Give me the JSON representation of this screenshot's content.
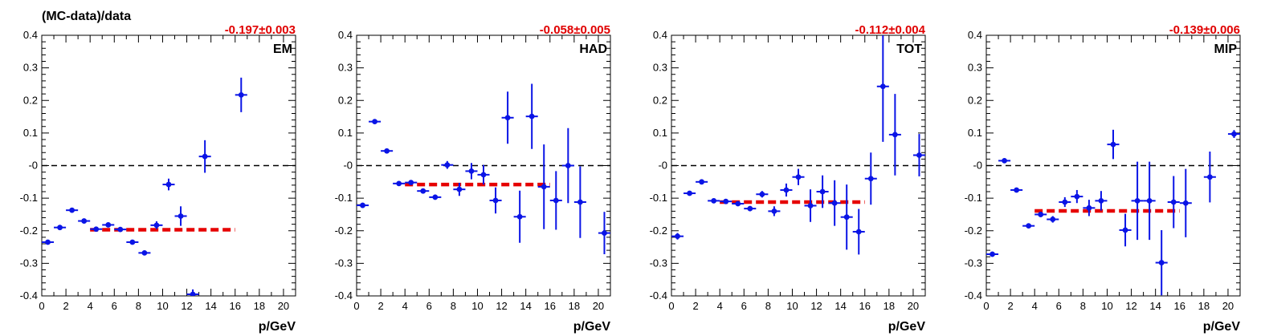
{
  "figure": {
    "ylabel": "(MC-data)/data",
    "xlabel": "p/GeV"
  },
  "colors": {
    "points": "#0a14e6",
    "fit": "#e60000",
    "fit_text": "#e00000",
    "zero_line": "#000000",
    "axes": "#000000"
  },
  "chart_data": [
    {
      "type": "scatter",
      "title": "EM",
      "fit_label": "-0.197±0.003",
      "fit_value": -0.197,
      "fit_range": [
        4,
        16
      ],
      "xlabel": "p/GeV",
      "ylabel": "(MC-data)/data",
      "xlim": [
        0,
        21
      ],
      "ylim": [
        -0.4,
        0.4
      ],
      "x_ticks": [
        "0",
        "2",
        "4",
        "6",
        "8",
        "10",
        "12",
        "14",
        "16",
        "18",
        "20"
      ],
      "y_ticks": [
        "-0.4",
        "-0.3",
        "-0.2",
        "-0.1",
        "-0",
        "0.1",
        "0.2",
        "0.3",
        "0.4"
      ],
      "points": [
        {
          "x": 0.5,
          "y": -0.235,
          "err": 0.006
        },
        {
          "x": 1.5,
          "y": -0.19,
          "err": 0.004
        },
        {
          "x": 2.5,
          "y": -0.137,
          "err": 0.004
        },
        {
          "x": 3.5,
          "y": -0.17,
          "err": 0.004
        },
        {
          "x": 4.5,
          "y": -0.195,
          "err": 0.004
        },
        {
          "x": 5.5,
          "y": -0.182,
          "err": 0.004
        },
        {
          "x": 6.5,
          "y": -0.196,
          "err": 0.004
        },
        {
          "x": 7.5,
          "y": -0.235,
          "err": 0.005
        },
        {
          "x": 8.5,
          "y": -0.268,
          "err": 0.006
        },
        {
          "x": 9.5,
          "y": -0.183,
          "err": 0.012
        },
        {
          "x": 10.5,
          "y": -0.058,
          "err": 0.018
        },
        {
          "x": 11.5,
          "y": -0.155,
          "err": 0.03
        },
        {
          "x": 12.5,
          "y": -0.395,
          "err": 0.015
        },
        {
          "x": 13.5,
          "y": 0.028,
          "err": 0.05
        },
        {
          "x": 16.5,
          "y": 0.217,
          "err": 0.053
        }
      ]
    },
    {
      "type": "scatter",
      "title": "HAD",
      "fit_label": "-0.058±0.005",
      "fit_value": -0.058,
      "fit_range": [
        4,
        16
      ],
      "xlabel": "p/GeV",
      "ylabel": "",
      "xlim": [
        0,
        21
      ],
      "ylim": [
        -0.4,
        0.4
      ],
      "x_ticks": [
        "0",
        "2",
        "4",
        "6",
        "8",
        "10",
        "12",
        "14",
        "16",
        "18",
        "20"
      ],
      "y_ticks": [
        "-0.4",
        "-0.3",
        "-0.2",
        "-0.1",
        "-0",
        "0.1",
        "0.2",
        "0.3",
        "0.4"
      ],
      "points": [
        {
          "x": 0.5,
          "y": -0.122,
          "err": 0.008
        },
        {
          "x": 1.5,
          "y": 0.135,
          "err": 0.004
        },
        {
          "x": 2.5,
          "y": 0.045,
          "err": 0.004
        },
        {
          "x": 3.5,
          "y": -0.055,
          "err": 0.004
        },
        {
          "x": 4.5,
          "y": -0.052,
          "err": 0.005
        },
        {
          "x": 5.5,
          "y": -0.078,
          "err": 0.006
        },
        {
          "x": 6.5,
          "y": -0.097,
          "err": 0.008
        },
        {
          "x": 7.5,
          "y": 0.002,
          "err": 0.012
        },
        {
          "x": 8.5,
          "y": -0.073,
          "err": 0.02
        },
        {
          "x": 9.5,
          "y": -0.017,
          "err": 0.025
        },
        {
          "x": 10.5,
          "y": -0.028,
          "err": 0.03
        },
        {
          "x": 11.5,
          "y": -0.107,
          "err": 0.04
        },
        {
          "x": 12.5,
          "y": 0.147,
          "err": 0.08
        },
        {
          "x": 13.5,
          "y": -0.157,
          "err": 0.08
        },
        {
          "x": 14.5,
          "y": 0.151,
          "err": 0.1
        },
        {
          "x": 15.5,
          "y": -0.065,
          "err": 0.13
        },
        {
          "x": 16.5,
          "y": -0.107,
          "err": 0.09
        },
        {
          "x": 17.5,
          "y": 0.0,
          "err": 0.115
        },
        {
          "x": 18.5,
          "y": -0.112,
          "err": 0.11
        },
        {
          "x": 20.5,
          "y": -0.207,
          "err": 0.065
        }
      ]
    },
    {
      "type": "scatter",
      "title": "TOT",
      "fit_label": "-0.112±0.004",
      "fit_value": -0.112,
      "fit_range": [
        4,
        16
      ],
      "xlabel": "p/GeV",
      "ylabel": "",
      "xlim": [
        0,
        21
      ],
      "ylim": [
        -0.4,
        0.4
      ],
      "x_ticks": [
        "0",
        "2",
        "4",
        "6",
        "8",
        "10",
        "12",
        "14",
        "16",
        "18",
        "20"
      ],
      "y_ticks": [
        "-0.4",
        "-0.3",
        "-0.2",
        "-0.1",
        "-0",
        "0.1",
        "0.2",
        "0.3",
        "0.4"
      ],
      "points": [
        {
          "x": 0.5,
          "y": -0.217,
          "err": 0.01
        },
        {
          "x": 1.5,
          "y": -0.085,
          "err": 0.004
        },
        {
          "x": 2.5,
          "y": -0.05,
          "err": 0.004
        },
        {
          "x": 3.5,
          "y": -0.108,
          "err": 0.004
        },
        {
          "x": 4.5,
          "y": -0.11,
          "err": 0.005
        },
        {
          "x": 5.5,
          "y": -0.117,
          "err": 0.006
        },
        {
          "x": 6.5,
          "y": -0.132,
          "err": 0.008
        },
        {
          "x": 7.5,
          "y": -0.088,
          "err": 0.01
        },
        {
          "x": 8.5,
          "y": -0.14,
          "err": 0.015
        },
        {
          "x": 9.5,
          "y": -0.075,
          "err": 0.02
        },
        {
          "x": 10.5,
          "y": -0.035,
          "err": 0.025
        },
        {
          "x": 11.5,
          "y": -0.123,
          "err": 0.05
        },
        {
          "x": 12.5,
          "y": -0.08,
          "err": 0.05
        },
        {
          "x": 13.5,
          "y": -0.115,
          "err": 0.07
        },
        {
          "x": 14.5,
          "y": -0.158,
          "err": 0.1
        },
        {
          "x": 15.5,
          "y": -0.203,
          "err": 0.07
        },
        {
          "x": 16.5,
          "y": -0.04,
          "err": 0.08
        },
        {
          "x": 17.5,
          "y": 0.243,
          "err": 0.17
        },
        {
          "x": 18.5,
          "y": 0.095,
          "err": 0.125
        },
        {
          "x": 20.5,
          "y": 0.032,
          "err": 0.065
        }
      ]
    },
    {
      "type": "scatter",
      "title": "MIP",
      "fit_label": "-0.139±0.006",
      "fit_value": -0.139,
      "fit_range": [
        4,
        16
      ],
      "xlabel": "p/GeV",
      "ylabel": "",
      "xlim": [
        0,
        21
      ],
      "ylim": [
        -0.4,
        0.4
      ],
      "x_ticks": [
        "0",
        "2",
        "4",
        "6",
        "8",
        "10",
        "12",
        "14",
        "16",
        "18",
        "20"
      ],
      "y_ticks": [
        "-0.4",
        "-0.3",
        "-0.2",
        "-0.1",
        "-0",
        "0.1",
        "0.2",
        "0.3",
        "0.4"
      ],
      "points": [
        {
          "x": 0.5,
          "y": -0.272,
          "err": 0.008
        },
        {
          "x": 1.5,
          "y": 0.015,
          "err": 0.006
        },
        {
          "x": 2.5,
          "y": -0.075,
          "err": 0.005
        },
        {
          "x": 3.5,
          "y": -0.185,
          "err": 0.005
        },
        {
          "x": 4.5,
          "y": -0.15,
          "err": 0.008
        },
        {
          "x": 5.5,
          "y": -0.165,
          "err": 0.01
        },
        {
          "x": 6.5,
          "y": -0.112,
          "err": 0.015
        },
        {
          "x": 7.5,
          "y": -0.095,
          "err": 0.02
        },
        {
          "x": 8.5,
          "y": -0.13,
          "err": 0.025
        },
        {
          "x": 9.5,
          "y": -0.108,
          "err": 0.03
        },
        {
          "x": 10.5,
          "y": 0.065,
          "err": 0.045
        },
        {
          "x": 11.5,
          "y": -0.198,
          "err": 0.05
        },
        {
          "x": 12.5,
          "y": -0.108,
          "err": 0.12
        },
        {
          "x": 13.5,
          "y": -0.108,
          "err": 0.12
        },
        {
          "x": 14.5,
          "y": -0.298,
          "err": 0.1
        },
        {
          "x": 15.5,
          "y": -0.112,
          "err": 0.08
        },
        {
          "x": 16.5,
          "y": -0.115,
          "err": 0.105
        },
        {
          "x": 18.5,
          "y": -0.035,
          "err": 0.078
        },
        {
          "x": 20.5,
          "y": 0.097,
          "err": 0.012
        }
      ]
    }
  ]
}
